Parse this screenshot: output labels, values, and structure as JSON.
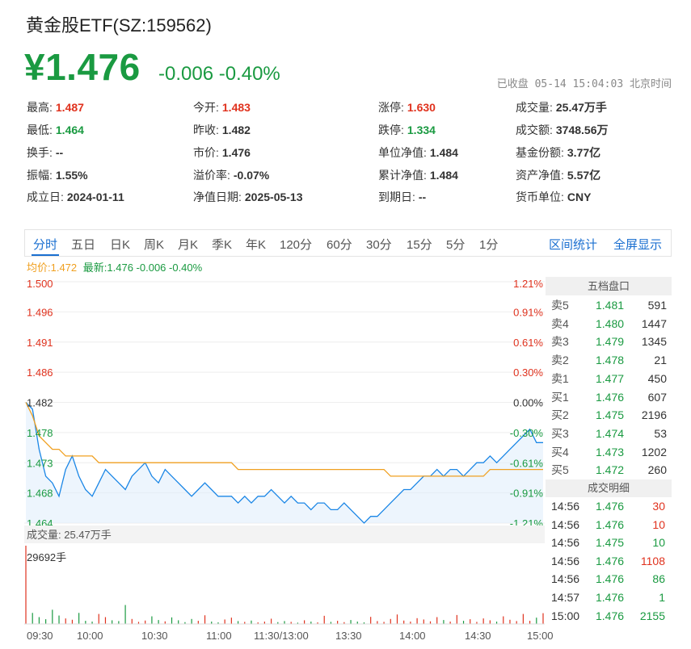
{
  "header": {
    "title": "黄金股ETF(SZ:159562)",
    "price": "¥1.476",
    "change": "-0.006 -0.40%",
    "status": "已收盘 05-14 15:04:03 北京时间"
  },
  "stats": [
    [
      {
        "label": "最高:",
        "value": "1.487",
        "color": "red"
      },
      {
        "label": "今开:",
        "value": "1.483",
        "color": "red"
      },
      {
        "label": "涨停:",
        "value": "1.630",
        "color": "red"
      },
      {
        "label": "成交量:",
        "value": "25.47万手",
        "color": "normal"
      }
    ],
    [
      {
        "label": "最低:",
        "value": "1.464",
        "color": "green"
      },
      {
        "label": "昨收:",
        "value": "1.482",
        "color": "normal"
      },
      {
        "label": "跌停:",
        "value": "1.334",
        "color": "green"
      },
      {
        "label": "成交额:",
        "value": "3748.56万",
        "color": "normal"
      }
    ],
    [
      {
        "label": "换手:",
        "value": "--",
        "color": "normal"
      },
      {
        "label": "市价:",
        "value": "1.476",
        "color": "normal"
      },
      {
        "label": "单位净值:",
        "value": "1.484",
        "color": "normal"
      },
      {
        "label": "基金份额:",
        "value": "3.77亿",
        "color": "normal"
      }
    ],
    [
      {
        "label": "振幅:",
        "value": "1.55%",
        "color": "normal"
      },
      {
        "label": "溢价率:",
        "value": "-0.07%",
        "color": "normal"
      },
      {
        "label": "累计净值:",
        "value": "1.484",
        "color": "normal"
      },
      {
        "label": "资产净值:",
        "value": "5.57亿",
        "color": "normal"
      }
    ],
    [
      {
        "label": "成立日:",
        "value": "2024-01-11",
        "color": "normal"
      },
      {
        "label": "净值日期:",
        "value": "2025-05-13",
        "color": "normal"
      },
      {
        "label": "到期日:",
        "value": "--",
        "color": "normal"
      },
      {
        "label": "货币单位:",
        "value": "CNY",
        "color": "normal"
      }
    ]
  ],
  "tabs": [
    "分时",
    "五日",
    "日K",
    "周K",
    "月K",
    "季K",
    "年K",
    "120分",
    "60分",
    "30分",
    "15分",
    "5分",
    "1分"
  ],
  "active_tab": "分时",
  "right_tabs": [
    "区间统计",
    "全屏显示"
  ],
  "legend": {
    "avg": "均价:1.472",
    "latest": "最新:1.476 -0.006 -0.40%"
  },
  "volume_label": "成交量: 25.47万手",
  "order_book": {
    "title": "五档盘口",
    "rows": [
      {
        "label": "卖5",
        "price": "1.481",
        "volume": "591"
      },
      {
        "label": "卖4",
        "price": "1.480",
        "volume": "1447"
      },
      {
        "label": "卖3",
        "price": "1.479",
        "volume": "1345"
      },
      {
        "label": "卖2",
        "price": "1.478",
        "volume": "21"
      },
      {
        "label": "卖1",
        "price": "1.477",
        "volume": "450"
      },
      {
        "label": "买1",
        "price": "1.476",
        "volume": "607"
      },
      {
        "label": "买2",
        "price": "1.475",
        "volume": "2196"
      },
      {
        "label": "买3",
        "price": "1.474",
        "volume": "53"
      },
      {
        "label": "买4",
        "price": "1.473",
        "volume": "1202"
      },
      {
        "label": "买5",
        "price": "1.472",
        "volume": "260"
      }
    ]
  },
  "deals": {
    "title": "成交明细",
    "rows": [
      {
        "time": "14:56",
        "price": "1.476",
        "qty": "30",
        "side": "red"
      },
      {
        "time": "14:56",
        "price": "1.476",
        "qty": "10",
        "side": "red"
      },
      {
        "time": "14:56",
        "price": "1.475",
        "qty": "10",
        "side": "green"
      },
      {
        "time": "14:56",
        "price": "1.476",
        "qty": "1108",
        "side": "red"
      },
      {
        "time": "14:56",
        "price": "1.476",
        "qty": "86",
        "side": "green"
      },
      {
        "time": "14:57",
        "price": "1.476",
        "qty": "1",
        "side": "green"
      },
      {
        "time": "15:00",
        "price": "1.476",
        "qty": "2155",
        "side": "green"
      }
    ]
  },
  "chart_data": {
    "type": "line",
    "prev_close": 1.482,
    "ylim": [
      1.464,
      1.5
    ],
    "y_ticks": [
      "1.500",
      "1.496",
      "1.491",
      "1.486",
      "1.482",
      "1.478",
      "1.473",
      "1.468",
      "1.464"
    ],
    "pct_ticks": [
      "1.21%",
      "0.91%",
      "0.61%",
      "0.30%",
      "0.00%",
      "-0.30%",
      "-0.61%",
      "-0.91%",
      "-1.21%"
    ],
    "x_ticks": [
      "09:30",
      "10:00",
      "10:30",
      "11:00",
      "11:30/13:00",
      "13:30",
      "14:00",
      "14:30",
      "15:00"
    ],
    "volume_max_label": "29692手",
    "series": [
      {
        "name": "最新",
        "color": "#1a86e6",
        "values": [
          1.482,
          1.481,
          1.475,
          1.471,
          1.47,
          1.468,
          1.472,
          1.474,
          1.471,
          1.469,
          1.468,
          1.47,
          1.472,
          1.471,
          1.47,
          1.469,
          1.471,
          1.472,
          1.473,
          1.471,
          1.47,
          1.472,
          1.471,
          1.47,
          1.469,
          1.468,
          1.469,
          1.47,
          1.469,
          1.468,
          1.468,
          1.468,
          1.467,
          1.468,
          1.467,
          1.468,
          1.468,
          1.469,
          1.468,
          1.467,
          1.468,
          1.467,
          1.467,
          1.466,
          1.467,
          1.467,
          1.466,
          1.466,
          1.467,
          1.466,
          1.465,
          1.464,
          1.465,
          1.465,
          1.466,
          1.467,
          1.468,
          1.469,
          1.469,
          1.47,
          1.471,
          1.471,
          1.472,
          1.471,
          1.472,
          1.472,
          1.471,
          1.472,
          1.473,
          1.473,
          1.474,
          1.473,
          1.474,
          1.475,
          1.476,
          1.477,
          1.478,
          1.476,
          1.476
        ]
      },
      {
        "name": "均价",
        "color": "#f0a020",
        "values": [
          1.482,
          1.48,
          1.477,
          1.476,
          1.475,
          1.475,
          1.474,
          1.474,
          1.474,
          1.474,
          1.474,
          1.473,
          1.473,
          1.473,
          1.473,
          1.473,
          1.473,
          1.473,
          1.473,
          1.473,
          1.473,
          1.473,
          1.473,
          1.473,
          1.473,
          1.473,
          1.473,
          1.473,
          1.473,
          1.473,
          1.473,
          1.473,
          1.472,
          1.472,
          1.472,
          1.472,
          1.472,
          1.472,
          1.472,
          1.472,
          1.472,
          1.472,
          1.472,
          1.472,
          1.472,
          1.472,
          1.472,
          1.472,
          1.472,
          1.472,
          1.472,
          1.472,
          1.472,
          1.472,
          1.472,
          1.471,
          1.471,
          1.471,
          1.471,
          1.471,
          1.471,
          1.471,
          1.471,
          1.471,
          1.471,
          1.471,
          1.471,
          1.471,
          1.471,
          1.471,
          1.472,
          1.472,
          1.472,
          1.472,
          1.472,
          1.472,
          1.472,
          1.472,
          1.472
        ]
      }
    ],
    "volume": [
      29692,
      4200,
      2600,
      1800,
      5400,
      3200,
      2100,
      1600,
      4200,
      1200,
      900,
      3800,
      2600,
      1400,
      1100,
      7200,
      1900,
      800,
      1300,
      2900,
      1500,
      1000,
      2500,
      1400,
      700,
      1900,
      1200,
      3300,
      900,
      600,
      1700,
      2400,
      1100,
      800,
      1300,
      600,
      900,
      2000,
      700,
      1100,
      800,
      500,
      1400,
      900,
      600,
      3100,
      800,
      1200,
      700,
      1500,
      900,
      600,
      2700,
      1100,
      800,
      1900,
      3600,
      1300,
      900,
      2200,
      1700,
      1000,
      2600,
      1500,
      900,
      3400,
      1200,
      1800,
      800,
      2100,
      1400,
      900,
      2900,
      1600,
      1100,
      3800,
      1200,
      2400,
      4100
    ]
  }
}
